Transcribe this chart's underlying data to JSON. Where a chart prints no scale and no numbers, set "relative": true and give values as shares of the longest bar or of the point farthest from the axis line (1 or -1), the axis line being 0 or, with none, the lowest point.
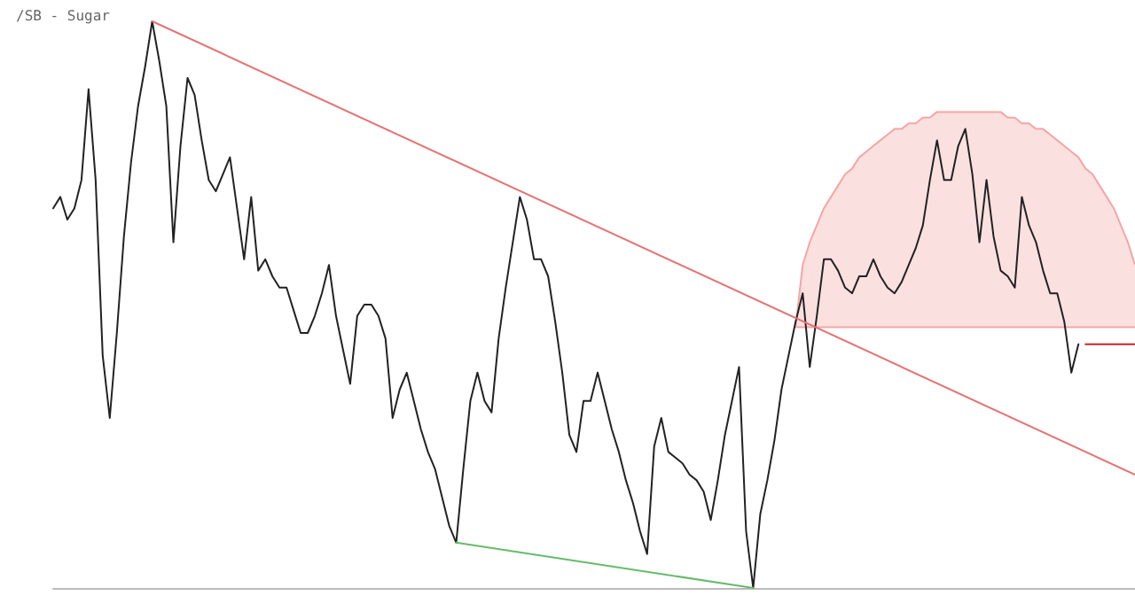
{
  "chart_data": {
    "type": "line",
    "title": "/SB - Sugar",
    "relative": true,
    "grid": false,
    "tick_labels": false,
    "categories": [
      null,
      null,
      null,
      null,
      null,
      null,
      null,
      null,
      null,
      null,
      null,
      null,
      null,
      null,
      null,
      null,
      null,
      null,
      null,
      null,
      null,
      null,
      null,
      null,
      null,
      null,
      null,
      null,
      null,
      null,
      null,
      null,
      null,
      null,
      null,
      null,
      null,
      null,
      null,
      null,
      null,
      null,
      null,
      null,
      null,
      null,
      null,
      null,
      null,
      null,
      null,
      null,
      null,
      null,
      null,
      null,
      null,
      null,
      null,
      null,
      null,
      null,
      null,
      null,
      null,
      null,
      null,
      null,
      null,
      null,
      null,
      null,
      null,
      null,
      null,
      null,
      null,
      null,
      null,
      null,
      null,
      null,
      null,
      null,
      null,
      null,
      null,
      null,
      null,
      null,
      null,
      null,
      null,
      null,
      null,
      null,
      null,
      null,
      null,
      null,
      null,
      null,
      null,
      null,
      null,
      null,
      null,
      null,
      null,
      null,
      null,
      null,
      null,
      null,
      null,
      null,
      null,
      null,
      null,
      null,
      null,
      null,
      null,
      null,
      null,
      null,
      null,
      null,
      null,
      null,
      null,
      null,
      null,
      null,
      null,
      null,
      null,
      null,
      null,
      null,
      null,
      null,
      null,
      null,
      null,
      null,
      null,
      null,
      null,
      null,
      null,
      null,
      null,
      null
    ],
    "series": [
      {
        "color": "#f4a6a6",
        "values": [
          null,
          null,
          null,
          null,
          null,
          null,
          null,
          null,
          null,
          null,
          null,
          null,
          null,
          null,
          null,
          null,
          null,
          null,
          null,
          null,
          null,
          null,
          null,
          null,
          null,
          null,
          null,
          null,
          null,
          null,
          null,
          null,
          null,
          null,
          null,
          null,
          null,
          null,
          null,
          null,
          null,
          null,
          null,
          null,
          null,
          null,
          null,
          null,
          null,
          null,
          null,
          null,
          null,
          null,
          null,
          null,
          null,
          null,
          null,
          null,
          null,
          null,
          null,
          null,
          null,
          null,
          null,
          null,
          null,
          null,
          null,
          null,
          null,
          null,
          null,
          null,
          null,
          null,
          null,
          null,
          null,
          null,
          null,
          null,
          null,
          null,
          null,
          null,
          null,
          null,
          null,
          null,
          null,
          null,
          null,
          null,
          null,
          null,
          null,
          null,
          null,
          null,
          null,
          null,
          null,
          0.46,
          0.46,
          0.46,
          0.46,
          0.46,
          0.46,
          0.46,
          0.46,
          0.46,
          0.46,
          0.46,
          0.46,
          0.46,
          0.46,
          0.46,
          0.46,
          0.46,
          0.46,
          0.46,
          0.46,
          0.46,
          0.46,
          0.46,
          0.46,
          0.46,
          0.46,
          0.46,
          0.46,
          0.46,
          0.46,
          0.46,
          0.46,
          0.46,
          0.46,
          0.46,
          0.46,
          0.46,
          0.46,
          0.46,
          0.46,
          0.46,
          0.46,
          0.46,
          0.46,
          0.46,
          0.46,
          0.46,
          0.46,
          0.46
        ]
      },
      {
        "type": "area",
        "color": "#f4a6a6",
        "values": [
          null,
          null,
          null,
          null,
          null,
          null,
          null,
          null,
          null,
          null,
          null,
          null,
          null,
          null,
          null,
          null,
          null,
          null,
          null,
          null,
          null,
          null,
          null,
          null,
          null,
          null,
          null,
          null,
          null,
          null,
          null,
          null,
          null,
          null,
          null,
          null,
          null,
          null,
          null,
          null,
          null,
          null,
          null,
          null,
          null,
          null,
          null,
          null,
          null,
          null,
          null,
          null,
          null,
          null,
          null,
          null,
          null,
          null,
          null,
          null,
          null,
          null,
          null,
          null,
          null,
          null,
          null,
          null,
          null,
          null,
          null,
          null,
          null,
          null,
          null,
          null,
          null,
          null,
          null,
          null,
          null,
          null,
          null,
          null,
          null,
          null,
          null,
          null,
          null,
          null,
          null,
          null,
          null,
          null,
          null,
          null,
          null,
          null,
          null,
          null,
          null,
          null,
          null,
          null,
          null,
          0.46,
          0.57,
          0.61,
          0.64,
          0.67,
          0.69,
          0.71,
          0.73,
          0.74,
          0.76,
          0.77,
          0.78,
          0.79,
          0.8,
          0.81,
          0.81,
          0.82,
          0.82,
          0.83,
          0.83,
          0.84,
          0.84,
          0.84,
          0.84,
          0.84,
          0.84,
          0.84,
          0.84,
          0.84,
          0.84,
          0.83,
          0.83,
          0.82,
          0.82,
          0.81,
          0.81,
          0.8,
          0.79,
          0.78,
          0.77,
          0.76,
          0.74,
          0.73,
          0.71,
          0.69,
          0.67,
          0.64,
          0.61,
          0.57
        ]
      },
      {
        "color": "#222222",
        "values": [
          0.67,
          0.69,
          0.65,
          0.67,
          0.72,
          0.88,
          0.72,
          0.41,
          0.3,
          0.45,
          0.62,
          0.75,
          0.85,
          0.92,
          1.0,
          0.93,
          0.85,
          0.61,
          0.78,
          0.9,
          0.87,
          0.79,
          0.72,
          0.7,
          0.73,
          0.76,
          0.67,
          0.58,
          0.69,
          0.56,
          0.58,
          0.55,
          0.53,
          0.53,
          0.49,
          0.45,
          0.45,
          0.48,
          0.52,
          0.57,
          0.48,
          0.42,
          0.36,
          0.48,
          0.5,
          0.5,
          0.48,
          0.44,
          0.3,
          0.35,
          0.38,
          0.33,
          0.28,
          0.24,
          0.21,
          0.16,
          0.11,
          0.08,
          0.21,
          0.33,
          0.38,
          0.33,
          0.31,
          0.44,
          0.53,
          0.61,
          0.69,
          0.65,
          0.58,
          0.58,
          0.55,
          0.47,
          0.38,
          0.27,
          0.24,
          0.33,
          0.33,
          0.38,
          0.33,
          0.28,
          0.24,
          0.19,
          0.15,
          0.1,
          0.06,
          0.25,
          0.3,
          0.24,
          0.23,
          0.22,
          0.2,
          0.19,
          0.17,
          0.12,
          0.19,
          0.27,
          0.33,
          0.39,
          0.1,
          0.0,
          0.13,
          0.19,
          0.26,
          0.35,
          0.41,
          0.47,
          0.52,
          0.39,
          0.48,
          0.58,
          0.58,
          0.56,
          0.53,
          0.52,
          0.55,
          0.55,
          0.58,
          0.55,
          0.53,
          0.52,
          0.54,
          0.57,
          0.6,
          0.64,
          0.72,
          0.79,
          0.72,
          0.72,
          0.78,
          0.81,
          0.73,
          0.61,
          0.72,
          0.62,
          0.56,
          0.55,
          0.53,
          0.69,
          0.64,
          0.61,
          0.56,
          0.52,
          0.52,
          0.47,
          0.38,
          0.43,
          null,
          null,
          null,
          null,
          null,
          null,
          null,
          null
        ]
      },
      {
        "color": "#e57373",
        "values": [
          null,
          null,
          null,
          null,
          null,
          null,
          null,
          null,
          null,
          null,
          null,
          null,
          null,
          null,
          1.0,
          null,
          null,
          null,
          null,
          null,
          null,
          null,
          null,
          null,
          null,
          null,
          null,
          null,
          null,
          null,
          null,
          null,
          null,
          null,
          null,
          null,
          null,
          null,
          null,
          null,
          null,
          null,
          null,
          null,
          null,
          null,
          null,
          null,
          null,
          null,
          null,
          null,
          null,
          null,
          null,
          null,
          null,
          null,
          null,
          null,
          null,
          null,
          null,
          null,
          null,
          null,
          null,
          null,
          null,
          null,
          null,
          null,
          null,
          null,
          null,
          null,
          null,
          null,
          null,
          null,
          null,
          null,
          null,
          null,
          null,
          null,
          null,
          null,
          null,
          null,
          null,
          null,
          null,
          null,
          null,
          null,
          null,
          null,
          null,
          null,
          null,
          null,
          null,
          null,
          null,
          null,
          null,
          null,
          null,
          null,
          null,
          null,
          null,
          null,
          null,
          null,
          null,
          null,
          null,
          null,
          null,
          null,
          null,
          null,
          null,
          null,
          null,
          null,
          null,
          null,
          null,
          null,
          null,
          null,
          null,
          null,
          null,
          null,
          null,
          null,
          null,
          null,
          null,
          null,
          null,
          null,
          null,
          null,
          null,
          null,
          null,
          null,
          null,
          0.2
        ]
      },
      {
        "color": "#66bb6a",
        "values": [
          null,
          null,
          null,
          null,
          null,
          null,
          null,
          null,
          null,
          null,
          null,
          null,
          null,
          null,
          null,
          null,
          null,
          null,
          null,
          null,
          null,
          null,
          null,
          null,
          null,
          null,
          null,
          null,
          null,
          null,
          null,
          null,
          null,
          null,
          null,
          null,
          null,
          null,
          null,
          null,
          null,
          null,
          null,
          null,
          null,
          null,
          null,
          null,
          null,
          null,
          null,
          null,
          null,
          null,
          null,
          null,
          null,
          0.08,
          null,
          null,
          null,
          null,
          null,
          null,
          null,
          null,
          null,
          null,
          null,
          null,
          null,
          null,
          null,
          null,
          null,
          null,
          null,
          null,
          null,
          null,
          null,
          null,
          null,
          null,
          null,
          null,
          null,
          null,
          null,
          null,
          null,
          null,
          null,
          null,
          null,
          null,
          null,
          null,
          null,
          0.0,
          null,
          null,
          null,
          null,
          null,
          null,
          null,
          null,
          null,
          null,
          null,
          null,
          null,
          null,
          null,
          null,
          null,
          null,
          null,
          null,
          null,
          null,
          null,
          null,
          null,
          null,
          null,
          null,
          null,
          null,
          null,
          null,
          null,
          null,
          null,
          null,
          null,
          null,
          null,
          null,
          null,
          null,
          null,
          null,
          null,
          null,
          null,
          null,
          null,
          null,
          null,
          null,
          null,
          null
        ]
      },
      {
        "color": "#c62828",
        "values": [
          null,
          null,
          null,
          null,
          null,
          null,
          null,
          null,
          null,
          null,
          null,
          null,
          null,
          null,
          null,
          null,
          null,
          null,
          null,
          null,
          null,
          null,
          null,
          null,
          null,
          null,
          null,
          null,
          null,
          null,
          null,
          null,
          null,
          null,
          null,
          null,
          null,
          null,
          null,
          null,
          null,
          null,
          null,
          null,
          null,
          null,
          null,
          null,
          null,
          null,
          null,
          null,
          null,
          null,
          null,
          null,
          null,
          null,
          null,
          null,
          null,
          null,
          null,
          null,
          null,
          null,
          null,
          null,
          null,
          null,
          null,
          null,
          null,
          null,
          null,
          null,
          null,
          null,
          null,
          null,
          null,
          null,
          null,
          null,
          null,
          null,
          null,
          null,
          null,
          null,
          null,
          null,
          null,
          null,
          null,
          null,
          null,
          null,
          null,
          null,
          null,
          null,
          null,
          null,
          null,
          null,
          null,
          null,
          null,
          null,
          null,
          null,
          null,
          null,
          null,
          null,
          null,
          null,
          null,
          null,
          null,
          null,
          null,
          null,
          null,
          null,
          null,
          null,
          null,
          null,
          null,
          null,
          null,
          null,
          null,
          null,
          null,
          null,
          null,
          null,
          null,
          null,
          null,
          null,
          null,
          null,
          0.43,
          0.43,
          0.43,
          0.43,
          0.43,
          0.43,
          0.43,
          0.43
        ]
      }
    ]
  }
}
